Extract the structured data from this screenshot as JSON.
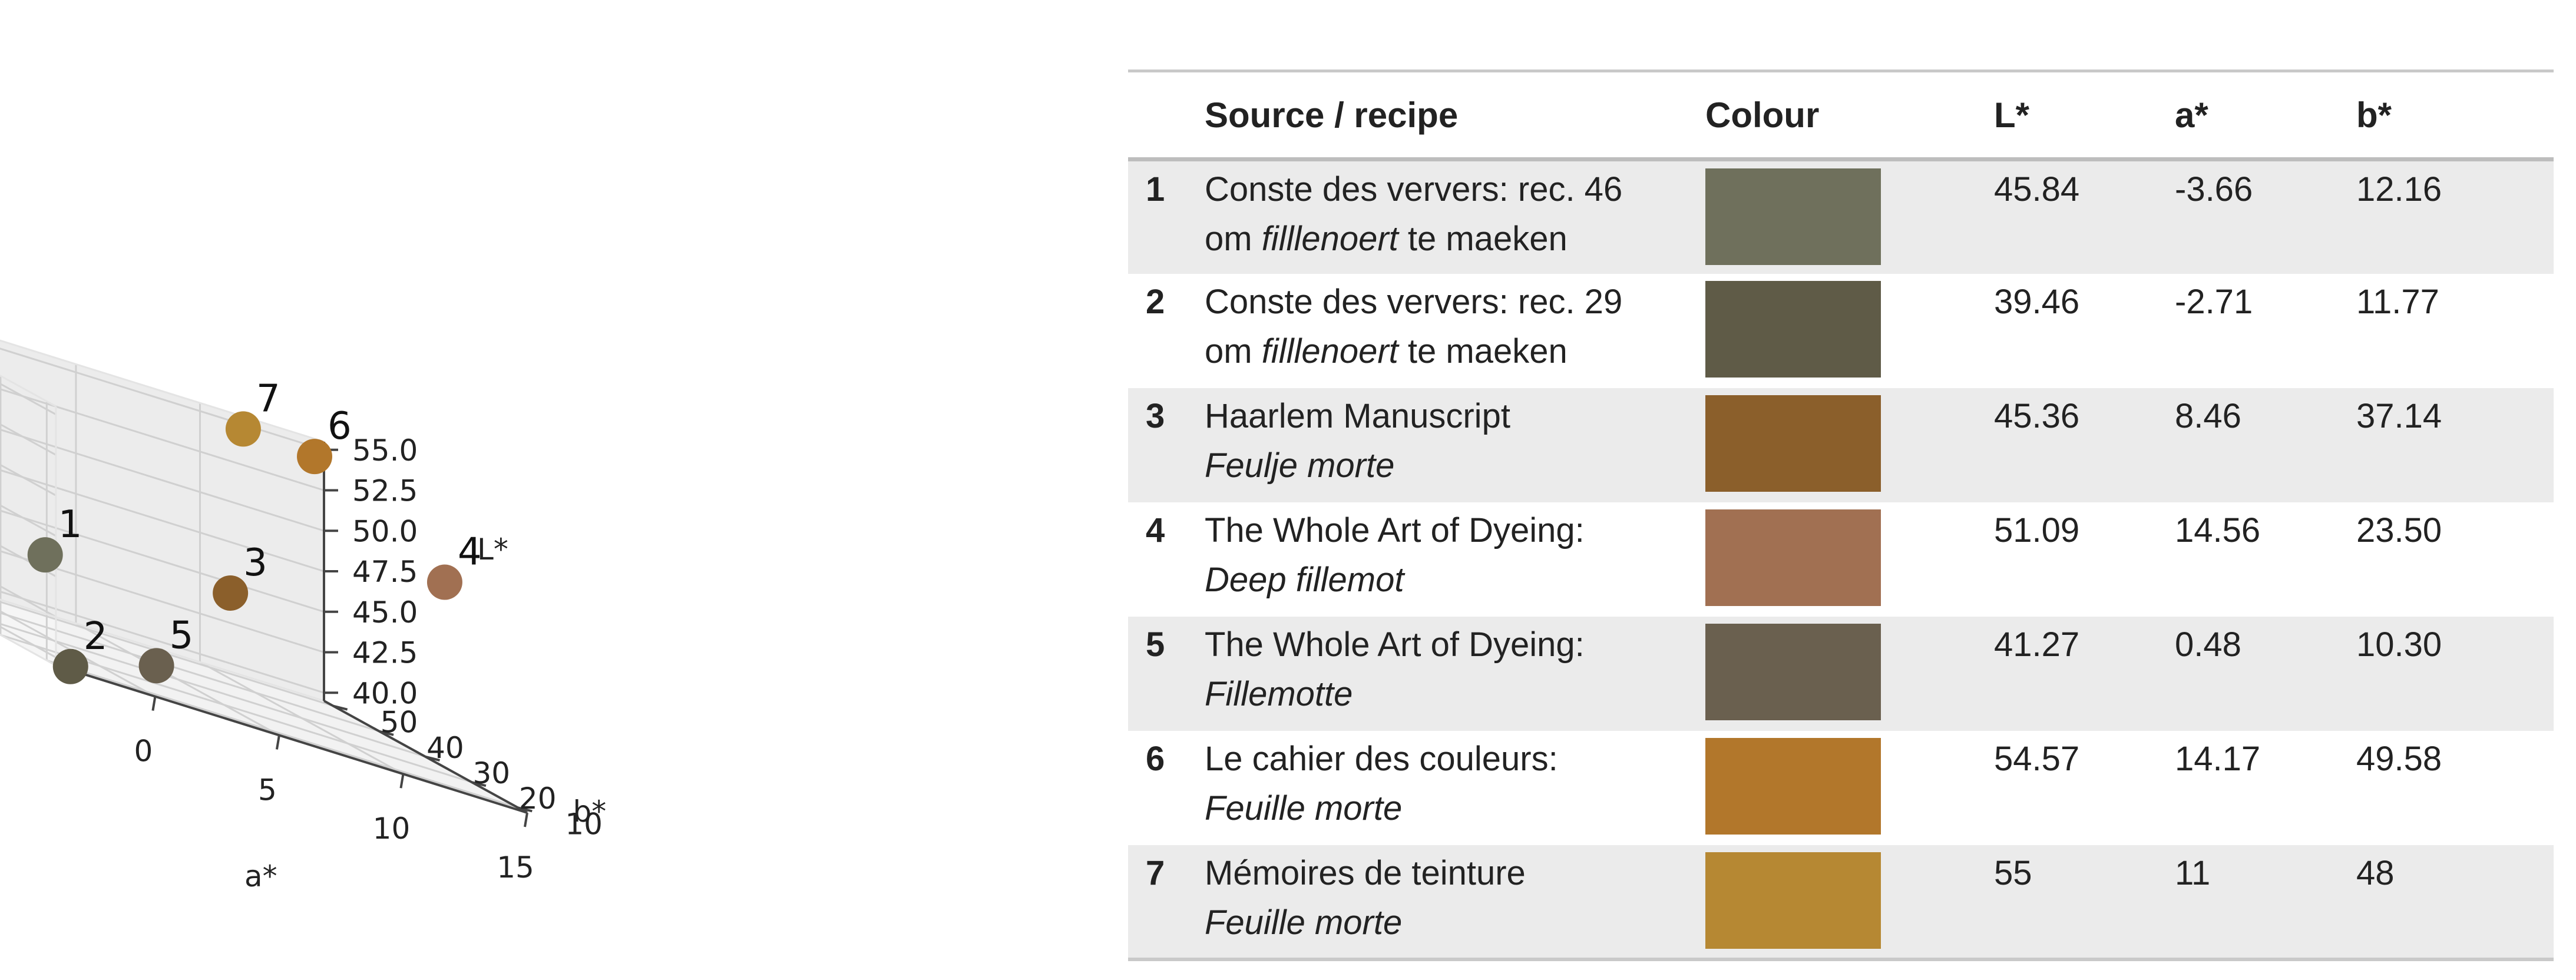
{
  "chart_data": {
    "type": "scatter",
    "projection": "3d",
    "xlabel": "a*",
    "ylabel": "b*",
    "zlabel": "L*",
    "xticks": [
      0,
      5,
      10,
      15
    ],
    "yticks": [
      10,
      20,
      30,
      40,
      50
    ],
    "zticks": [
      "40.0",
      "42.5",
      "45.0",
      "47.5",
      "50.0",
      "52.5",
      "55.0"
    ],
    "xlim": [
      -4,
      15
    ],
    "ylim": [
      8,
      52
    ],
    "zlim": [
      39.5,
      55.5
    ],
    "grid": true,
    "points": [
      {
        "label": "1",
        "a": -3.66,
        "b": 12.16,
        "L": 45.84,
        "color": "#6f705c"
      },
      {
        "label": "2",
        "a": -2.71,
        "b": 11.77,
        "L": 39.46,
        "color": "#5f5b47"
      },
      {
        "label": "3",
        "a": 8.46,
        "b": 37.14,
        "L": 45.36,
        "color": "#8b5f2b"
      },
      {
        "label": "4",
        "a": 14.56,
        "b": 23.5,
        "L": 51.09,
        "color": "#a17052"
      },
      {
        "label": "5",
        "a": 0.48,
        "b": 10.3,
        "L": 41.27,
        "color": "#6a604f"
      },
      {
        "label": "6",
        "a": 14.17,
        "b": 49.58,
        "L": 54.57,
        "color": "#b2772b"
      },
      {
        "label": "7",
        "a": 11,
        "b": 48,
        "L": 55,
        "color": "#b68833"
      }
    ]
  },
  "table": {
    "headers": {
      "source": "Source / recipe",
      "colour": "Colour",
      "l": "L*",
      "a": "a*",
      "b": "b*"
    },
    "rows": [
      {
        "num": "1",
        "line1": "Conste des ververs: rec. 46",
        "line2_pre": "om ",
        "line2_em": "filllenoert",
        "line2_post": " te maeken",
        "swatch": "#6f705c",
        "L": "45.84",
        "a": "-3.66",
        "b": "12.16"
      },
      {
        "num": "2",
        "line1": "Conste des ververs: rec. 29",
        "line2_pre": "om ",
        "line2_em": "filllenoert",
        "line2_post": " te maeken",
        "swatch": "#5f5b47",
        "L": "39.46",
        "a": "-2.71",
        "b": "11.77"
      },
      {
        "num": "3",
        "line1": "Haarlem Manuscript",
        "line2_pre": "",
        "line2_em": "Feulje morte",
        "line2_post": "",
        "swatch": "#8b5f2b",
        "L": "45.36",
        "a": "8.46",
        "b": "37.14"
      },
      {
        "num": "4",
        "line1": "The Whole Art of Dyeing:",
        "line2_pre": "",
        "line2_em": "Deep fillemot",
        "line2_post": "",
        "swatch": "#a17052",
        "L": "51.09",
        "a": "14.56",
        "b": "23.50"
      },
      {
        "num": "5",
        "line1": "The Whole Art of Dyeing:",
        "line2_pre": "",
        "line2_em": "Fillemotte",
        "line2_post": "",
        "swatch": "#6a604f",
        "L": "41.27",
        "a": "0.48",
        "b": "10.30"
      },
      {
        "num": "6",
        "line1": "Le cahier des couleurs:",
        "line2_pre": "",
        "line2_em": "Feuille morte",
        "line2_post": "",
        "swatch": "#b2772b",
        "L": "54.57",
        "a": "14.17",
        "b": "49.58"
      },
      {
        "num": "7",
        "line1": "Mémoires de teinture",
        "line2_pre": "",
        "line2_em": "Feuille morte",
        "line2_post": "",
        "swatch": "#b68833",
        "L": "55",
        "a": "11",
        "b": "48"
      }
    ]
  }
}
